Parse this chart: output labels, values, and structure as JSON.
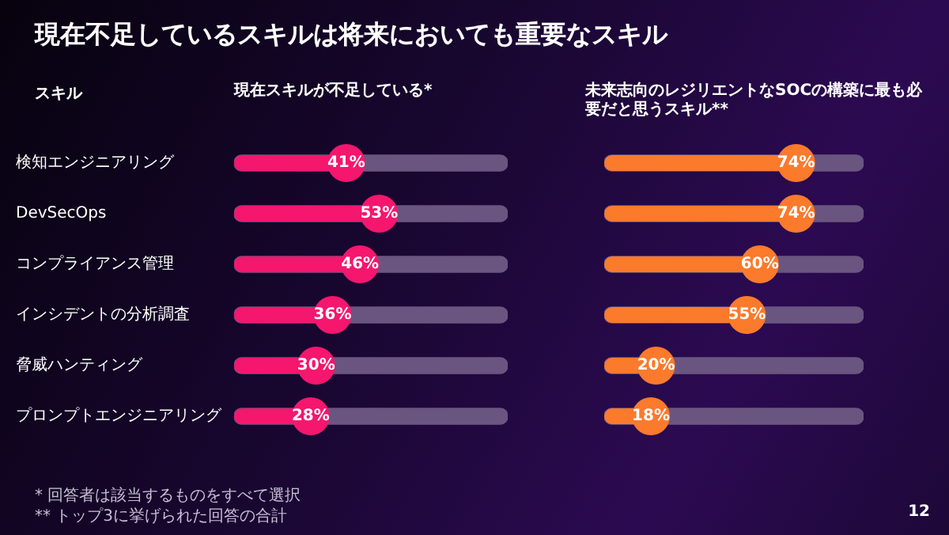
{
  "chart_data": [
    {
      "type": "lollipop",
      "orientation": "horizontal",
      "marker": "circle",
      "title": "現在不足しているスキルは将来においても重要なスキル",
      "subtitle": "現在スキルが不足している*",
      "ylabel": "スキル",
      "categories": [
        "検知エンジニアリング",
        "DevSecOps",
        "コンプライアンス管理",
        "インシデントの分析調査",
        "脅威ハンティング",
        "プロンプトエンジニアリング"
      ],
      "series": [
        {
          "color": "#f5166e",
          "values": [
            41,
            53,
            46,
            36,
            30,
            28
          ],
          "value_labels": [
            "41%",
            "53%",
            "46%",
            "36%",
            "30%",
            "28%"
          ]
        },
        {
          "type": "bar",
          "color": "#6a5580",
          "values": [
            100,
            100,
            100,
            100,
            100,
            100
          ]
        }
      ],
      "tick_labels": "y",
      "annotations": [
        "* 回答者は該当するものをすべて選択",
        "** トップ3に挙げられた回答の合計",
        "12"
      ]
    },
    {
      "type": "lollipop",
      "orientation": "horizontal",
      "marker": "circle",
      "subtitle": "未来志向のレジリエントなSOCの構築に最も必要だと思うスキル**",
      "categories": [
        null,
        null,
        null,
        null,
        null,
        null
      ],
      "series": [
        {
          "color": "#fb7a2c",
          "values": [
            74,
            74,
            60,
            55,
            20,
            18
          ],
          "value_labels": [
            "74%",
            "74%",
            "60%",
            "55%",
            "20%",
            "18%"
          ]
        },
        {
          "type": "bar",
          "color": "#6a5580",
          "values": [
            100,
            100,
            100,
            100,
            100,
            100
          ]
        }
      ],
      "tick_labels": false
    }
  ]
}
